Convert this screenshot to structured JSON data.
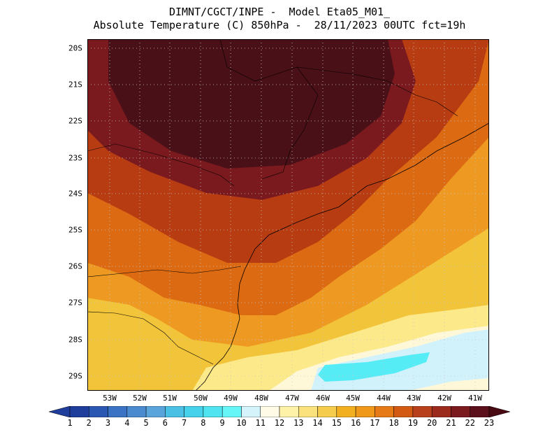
{
  "title": {
    "line1": "DIMNT/CGCT/INPE -  Model Eta05_M01_",
    "line2": "Absolute Temperature (C) 850hPa -  28/11/2023 00UTC fct=19h"
  },
  "map": {
    "lon_labels": [
      "53W",
      "52W",
      "51W",
      "50W",
      "49W",
      "48W",
      "47W",
      "46W",
      "45W",
      "44W",
      "43W",
      "42W",
      "41W"
    ],
    "lat_labels": [
      "20S",
      "21S",
      "22S",
      "23S",
      "24S",
      "25S",
      "26S",
      "27S",
      "28S",
      "29S"
    ],
    "colors": {
      "hot": "#4a1018",
      "very_warm": "#7a1a1e",
      "warm": "#b83c12",
      "orange": "#dc6a12",
      "light_orange": "#ee9a22",
      "yellow": "#f2c43a",
      "pale_yellow": "#fbe98a",
      "cream": "#fff8d8",
      "light_cyan": "#d2f2fb",
      "cyan": "#55ecf5"
    }
  },
  "colorbar": {
    "labels": [
      "1",
      "2",
      "3",
      "4",
      "5",
      "6",
      "7",
      "8",
      "9",
      "10",
      "11",
      "12",
      "13",
      "14",
      "15",
      "16",
      "17",
      "18",
      "19",
      "20",
      "21",
      "22",
      "23"
    ],
    "colors": [
      "#1f3d9a",
      "#1f3d9a",
      "#2a57b2",
      "#3a72c4",
      "#4a8bd0",
      "#5aa4dc",
      "#4ac0e4",
      "#46d2ea",
      "#50e4f0",
      "#66f6f8",
      "#d4f3fb",
      "#fffbe6",
      "#fef2a8",
      "#fce27c",
      "#f6cc4c",
      "#f2b020",
      "#ef981a",
      "#e57a16",
      "#d25a12",
      "#b8401a",
      "#9c2a1c",
      "#7a1a1e",
      "#5a0f1a",
      "#4a0a14"
    ]
  }
}
